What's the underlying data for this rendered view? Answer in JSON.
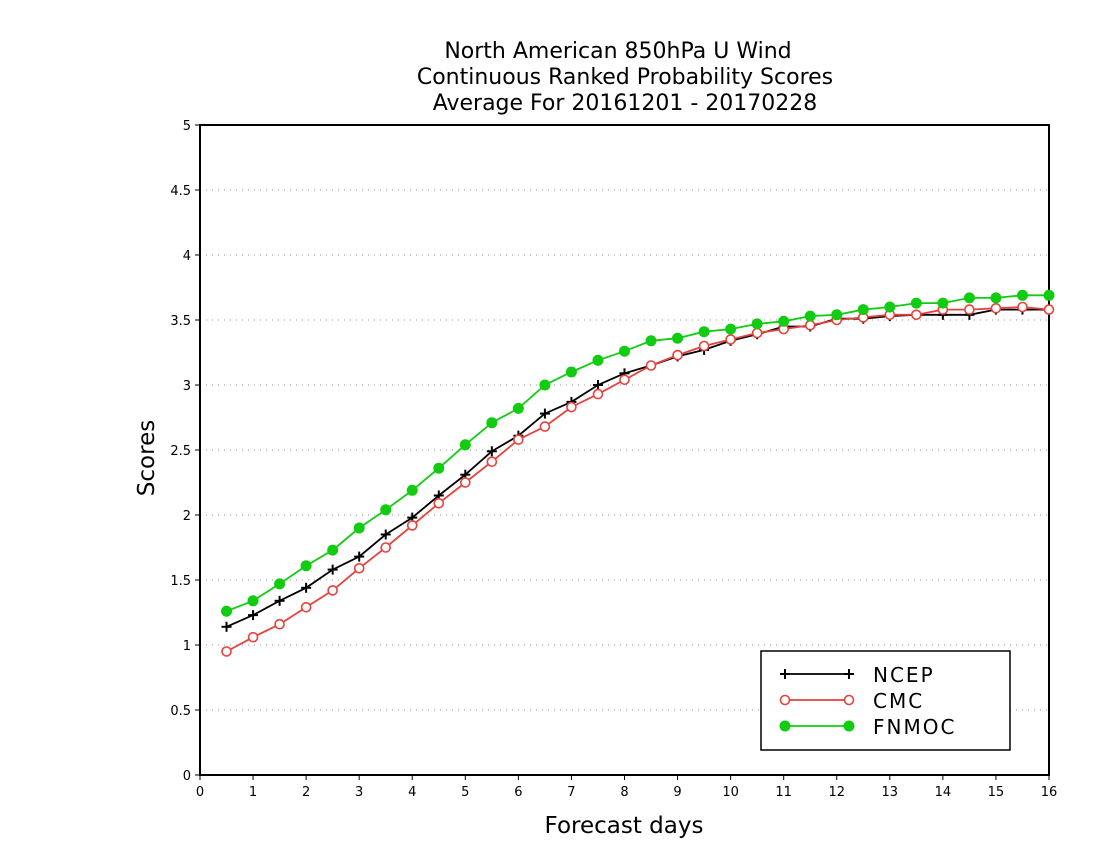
{
  "chart_data": {
    "type": "line",
    "title": [
      "North American 850hPa U Wind",
      "Continuous Ranked Probability Scores",
      "Average For 20161201 - 20170228"
    ],
    "xlabel": "Forecast days",
    "ylabel": "Scores",
    "xlim": [
      0,
      16
    ],
    "ylim": [
      0,
      5
    ],
    "xticks": [
      "0",
      "1",
      "2",
      "3",
      "4",
      "5",
      "6",
      "7",
      "8",
      "9",
      "10",
      "11",
      "12",
      "13",
      "14",
      "15",
      "16"
    ],
    "yticks": [
      "0",
      "0.5",
      "1",
      "1.5",
      "2",
      "2.5",
      "3",
      "3.5",
      "4",
      "4.5",
      "5"
    ],
    "grid": "horizontal dotted",
    "legend_position": "bottom-right",
    "x": [
      0.5,
      1,
      1.5,
      2,
      2.5,
      3,
      3.5,
      4,
      4.5,
      5,
      5.5,
      6,
      6.5,
      7,
      7.5,
      8,
      8.5,
      9,
      9.5,
      10,
      10.5,
      11,
      11.5,
      12,
      12.5,
      13,
      13.5,
      14,
      14.5,
      15,
      15.5,
      16
    ],
    "series": [
      {
        "name": "NCEP",
        "color": "#000000",
        "marker": "plus",
        "values": [
          1.14,
          1.23,
          1.34,
          1.44,
          1.58,
          1.68,
          1.85,
          1.98,
          2.15,
          2.31,
          2.49,
          2.61,
          2.78,
          2.87,
          3.0,
          3.09,
          3.15,
          3.22,
          3.27,
          3.34,
          3.39,
          3.45,
          3.45,
          3.51,
          3.51,
          3.53,
          3.54,
          3.54,
          3.54,
          3.58,
          3.58,
          3.58
        ]
      },
      {
        "name": "CMC",
        "color": "#e8413c",
        "marker": "open-circle",
        "values": [
          0.95,
          1.06,
          1.16,
          1.29,
          1.42,
          1.59,
          1.75,
          1.92,
          2.09,
          2.25,
          2.41,
          2.58,
          2.68,
          2.83,
          2.93,
          3.04,
          3.15,
          3.23,
          3.3,
          3.35,
          3.4,
          3.43,
          3.46,
          3.5,
          3.52,
          3.54,
          3.54,
          3.58,
          3.58,
          3.59,
          3.6,
          3.58
        ]
      },
      {
        "name": "FNMOC",
        "color": "#11cc11",
        "marker": "filled-circle",
        "values": [
          1.26,
          1.34,
          1.47,
          1.61,
          1.73,
          1.9,
          2.04,
          2.19,
          2.36,
          2.54,
          2.71,
          2.82,
          3.0,
          3.1,
          3.19,
          3.26,
          3.34,
          3.36,
          3.41,
          3.43,
          3.47,
          3.49,
          3.53,
          3.54,
          3.58,
          3.6,
          3.63,
          3.63,
          3.67,
          3.67,
          3.69,
          3.69
        ]
      }
    ]
  }
}
